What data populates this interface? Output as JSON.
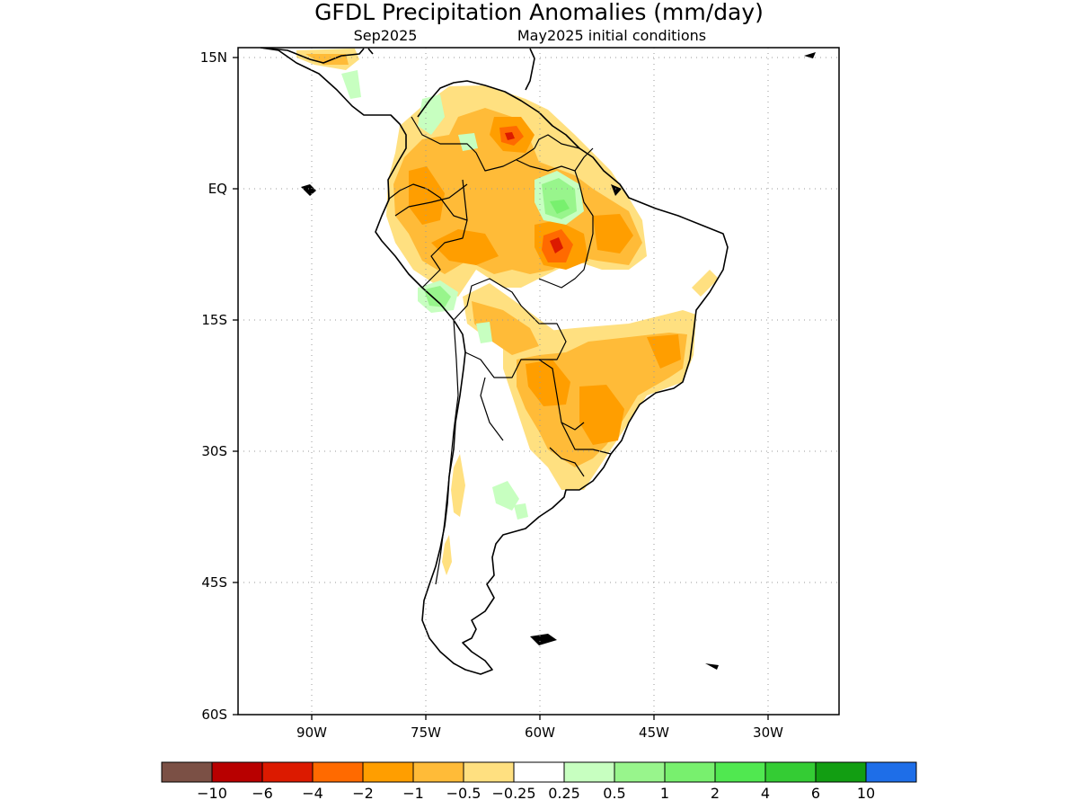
{
  "title": "GFDL Precipitation Anomalies (mm/day)",
  "subtitle_left": "Sep2025",
  "subtitle_right": "May2025 initial conditions",
  "lat_ticks": [
    "15N",
    "EQ",
    "15S",
    "30S",
    "45S",
    "60S"
  ],
  "lon_ticks": [
    "90W",
    "75W",
    "60W",
    "45W",
    "30W"
  ],
  "colorbar": {
    "colors": [
      "#7b5045",
      "#b80000",
      "#dc1a00",
      "#ff6a00",
      "#ff9e00",
      "#ffbb38",
      "#ffe080",
      "#ffffff",
      "#c7ffc0",
      "#98f58c",
      "#78f06e",
      "#50e850",
      "#34cc34",
      "#129e12",
      "#1e6ee8"
    ],
    "labels": [
      "−10",
      "−6",
      "−4",
      "−2",
      "−1",
      "−0.5",
      "−0.25",
      "0.25",
      "0.5",
      "1",
      "2",
      "4",
      "6",
      "10"
    ]
  },
  "anomaly_colors": {
    "light_orange": "#ffe080",
    "orange": "#ffbb38",
    "dark_orange": "#ff9e00",
    "red_orange": "#ff6a00",
    "red": "#dc1a00",
    "light_green": "#c7ffc0",
    "green": "#98f58c",
    "mid_green": "#78f06e"
  }
}
